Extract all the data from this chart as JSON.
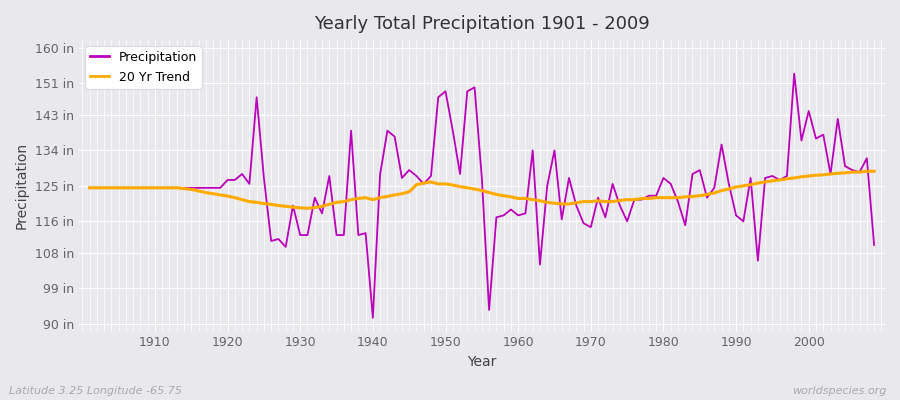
{
  "title": "Yearly Total Precipitation 1901 - 2009",
  "xlabel": "Year",
  "ylabel": "Precipitation",
  "watermark": "worldspecies.org",
  "lat_lon_label": "Latitude 3.25 Longitude -65.75",
  "bg_color": "#e8e8ed",
  "plot_bg_color": "#e8e8ed",
  "grid_color": "#ffffff",
  "precip_color": "#bb00bb",
  "trend_color": "#ffaa00",
  "ylim": [
    88,
    162
  ],
  "yticks": [
    90,
    99,
    108,
    116,
    125,
    134,
    143,
    151,
    160
  ],
  "ytick_labels": [
    "90 in",
    "99 in",
    "108 in",
    "116 in",
    "125 in",
    "134 in",
    "143 in",
    "151 in",
    "160 in"
  ],
  "years": [
    1901,
    1902,
    1903,
    1904,
    1905,
    1906,
    1907,
    1908,
    1909,
    1910,
    1911,
    1912,
    1913,
    1914,
    1915,
    1916,
    1917,
    1918,
    1919,
    1920,
    1921,
    1922,
    1923,
    1924,
    1925,
    1926,
    1927,
    1928,
    1929,
    1930,
    1931,
    1932,
    1933,
    1934,
    1935,
    1936,
    1937,
    1938,
    1939,
    1940,
    1941,
    1942,
    1943,
    1944,
    1945,
    1946,
    1947,
    1948,
    1949,
    1950,
    1951,
    1952,
    1953,
    1954,
    1955,
    1956,
    1957,
    1958,
    1959,
    1960,
    1961,
    1962,
    1963,
    1964,
    1965,
    1966,
    1967,
    1968,
    1969,
    1970,
    1971,
    1972,
    1973,
    1974,
    1975,
    1976,
    1977,
    1978,
    1979,
    1980,
    1981,
    1982,
    1983,
    1984,
    1985,
    1986,
    1987,
    1988,
    1989,
    1990,
    1991,
    1992,
    1993,
    1994,
    1995,
    1996,
    1997,
    1998,
    1999,
    2000,
    2001,
    2002,
    2003,
    2004,
    2005,
    2006,
    2007,
    2008,
    2009
  ],
  "precip": [
    124.5,
    124.5,
    124.5,
    124.5,
    124.5,
    124.5,
    124.5,
    124.5,
    124.5,
    124.5,
    124.5,
    124.5,
    124.5,
    124.5,
    124.5,
    124.5,
    124.5,
    124.5,
    124.5,
    126.5,
    126.5,
    128.0,
    125.5,
    147.5,
    127.0,
    111.0,
    111.5,
    109.5,
    120.0,
    112.5,
    112.5,
    122.0,
    118.0,
    127.5,
    112.5,
    112.5,
    139.0,
    112.5,
    113.0,
    91.5,
    128.0,
    139.0,
    137.5,
    127.0,
    129.0,
    127.5,
    125.5,
    127.5,
    147.5,
    149.0,
    139.0,
    128.0,
    149.0,
    150.0,
    127.0,
    93.5,
    117.0,
    117.5,
    119.0,
    117.5,
    118.0,
    134.0,
    105.0,
    125.0,
    134.0,
    116.5,
    127.0,
    120.0,
    115.5,
    114.5,
    122.0,
    117.0,
    125.5,
    120.0,
    116.0,
    121.5,
    121.5,
    122.5,
    122.5,
    127.0,
    125.5,
    121.0,
    115.0,
    128.0,
    129.0,
    122.0,
    124.5,
    135.5,
    125.5,
    117.5,
    116.0,
    127.0,
    106.0,
    127.0,
    127.5,
    126.5,
    127.5,
    153.5,
    136.5,
    144.0,
    137.0,
    138.0,
    128.0,
    142.0,
    130.0,
    129.0,
    128.5,
    132.0,
    110.0
  ],
  "trend": [
    124.5,
    124.5,
    124.5,
    124.5,
    124.5,
    124.5,
    124.5,
    124.5,
    124.5,
    124.5,
    124.5,
    124.5,
    124.5,
    124.3,
    124.1,
    123.7,
    123.3,
    123.0,
    122.7,
    122.4,
    122.0,
    121.5,
    121.0,
    120.8,
    120.5,
    120.3,
    120.0,
    119.8,
    119.6,
    119.4,
    119.3,
    119.5,
    119.8,
    120.3,
    120.8,
    121.0,
    121.5,
    121.8,
    122.0,
    121.5,
    122.0,
    122.3,
    122.7,
    123.0,
    123.5,
    125.3,
    125.7,
    126.0,
    125.5,
    125.5,
    125.2,
    124.8,
    124.5,
    124.2,
    123.8,
    123.3,
    122.8,
    122.5,
    122.2,
    121.8,
    121.8,
    121.5,
    121.2,
    120.8,
    120.6,
    120.4,
    120.4,
    120.7,
    121.0,
    121.0,
    121.2,
    121.0,
    121.0,
    121.3,
    121.5,
    121.5,
    121.8,
    121.8,
    122.0,
    122.0,
    122.0,
    122.0,
    122.2,
    122.3,
    122.5,
    122.8,
    123.2,
    123.8,
    124.2,
    124.7,
    125.0,
    125.3,
    125.7,
    126.0,
    126.3,
    126.5,
    126.8,
    127.0,
    127.3,
    127.5,
    127.7,
    127.8,
    128.0,
    128.2,
    128.3,
    128.5,
    128.5,
    128.7,
    128.7
  ]
}
